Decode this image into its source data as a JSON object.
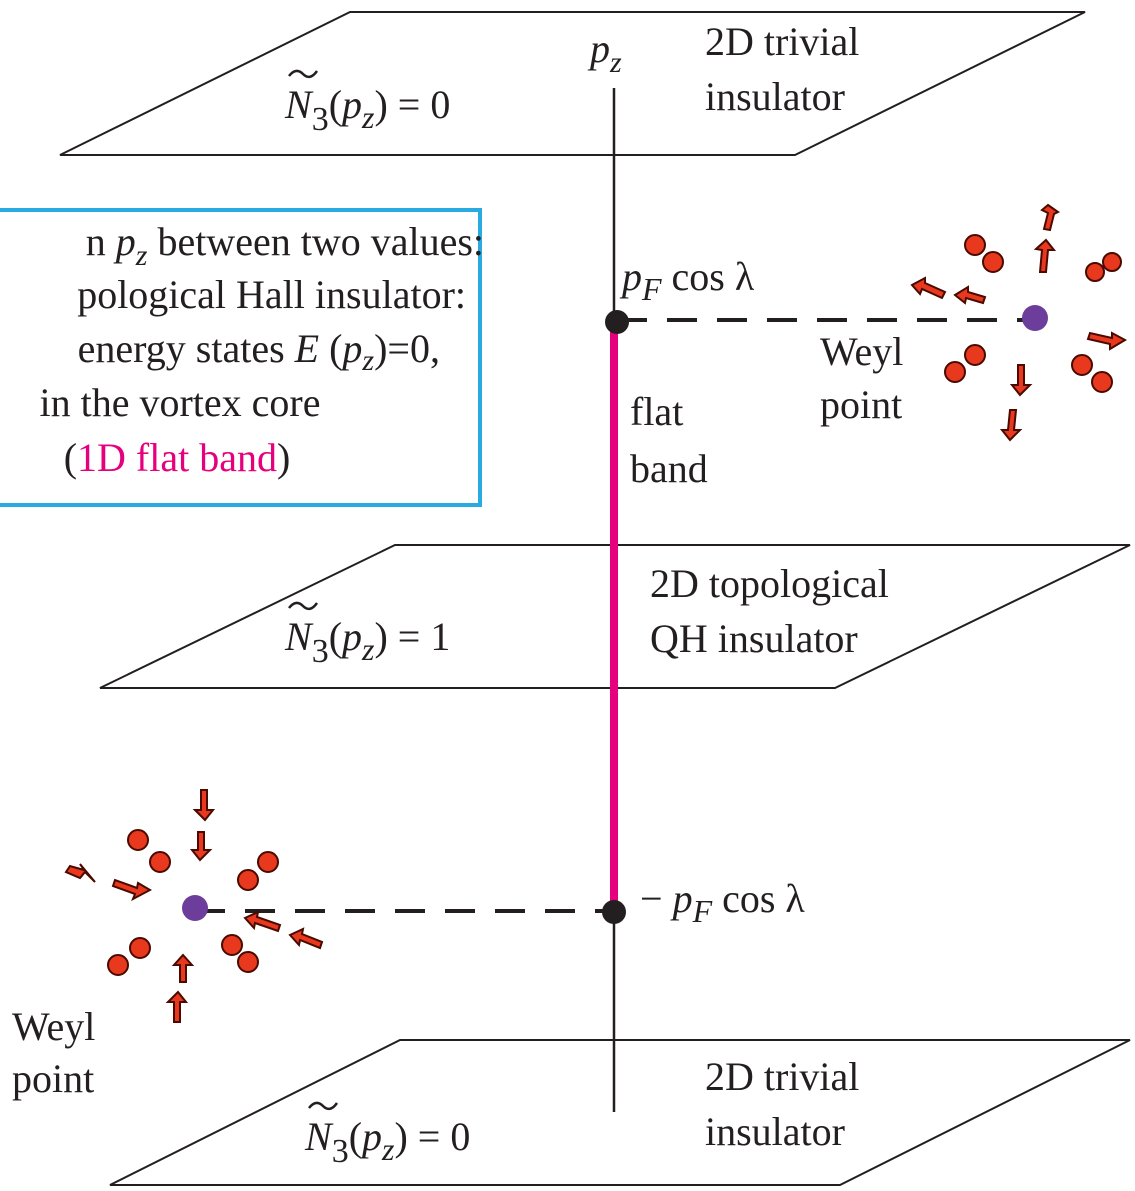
{
  "axis_label": [
    "p",
    "z"
  ],
  "top_plane": {
    "invariant": [
      "N",
      "3",
      "(",
      "p",
      "z",
      ") = 0"
    ],
    "label": [
      "2D trivial",
      "insulator"
    ]
  },
  "middle_plane": {
    "invariant": [
      "N",
      "3",
      "(",
      "p",
      "z",
      ") = 1"
    ],
    "label": [
      "2D topological",
      "QH insulator"
    ]
  },
  "bottom_plane": {
    "invariant": [
      "N",
      "3",
      "(",
      "p",
      "z",
      ") = 0"
    ],
    "label": [
      "2D trivial",
      "insulator"
    ]
  },
  "upper_point": {
    "label": [
      "p",
      "F",
      " cos λ"
    ],
    "name": [
      "Weyl",
      "point"
    ]
  },
  "lower_point": {
    "label": [
      "− ",
      "p",
      "F",
      " cos λ"
    ],
    "name": [
      "Weyl",
      "point"
    ]
  },
  "flat_band_label": [
    "flat",
    "band"
  ],
  "info_box": {
    "lines": [
      [
        "n ",
        "p",
        "z",
        " between two values:"
      ],
      [
        "pological Hall insulator:"
      ],
      [
        "energy states ",
        "E",
        " (",
        "p",
        "z",
        ")=0,"
      ],
      [
        "in the vortex core"
      ],
      [
        "(",
        "1D flat band",
        ")"
      ]
    ]
  }
}
